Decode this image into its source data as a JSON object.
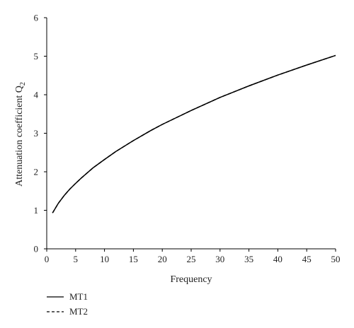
{
  "chart_data": {
    "type": "line",
    "xlabel": "Frequency",
    "ylabel_main": "Attenuation coefficient Q",
    "ylabel_sub": "2",
    "xlim": [
      0,
      50
    ],
    "ylim": [
      0,
      6
    ],
    "x_ticks": [
      "0",
      "5",
      "10",
      "15",
      "20",
      "25",
      "30",
      "35",
      "40",
      "45",
      "50"
    ],
    "y_ticks": [
      "0",
      "1",
      "2",
      "3",
      "4",
      "5",
      "6"
    ],
    "grid": false,
    "legend_position": "bottom-left",
    "series": [
      {
        "name": "MT1",
        "style": "solid",
        "color": "#000000",
        "x": [
          1,
          2,
          3,
          4,
          5,
          6,
          8,
          10,
          12,
          15,
          18,
          20,
          25,
          30,
          35,
          40,
          45,
          50
        ],
        "y": [
          0.93,
          1.18,
          1.38,
          1.55,
          1.7,
          1.84,
          2.1,
          2.32,
          2.53,
          2.81,
          3.07,
          3.23,
          3.59,
          3.93,
          4.23,
          4.51,
          4.77,
          5.02
        ]
      },
      {
        "name": "MT2",
        "style": "dashed",
        "color": "#000000",
        "x": [
          1,
          2,
          3,
          4,
          5,
          6,
          8,
          10,
          12,
          15,
          18,
          20,
          25,
          30,
          35,
          40,
          45,
          50
        ],
        "y": [
          0.93,
          1.18,
          1.38,
          1.55,
          1.7,
          1.84,
          2.1,
          2.32,
          2.53,
          2.81,
          3.07,
          3.23,
          3.59,
          3.93,
          4.23,
          4.51,
          4.77,
          5.02
        ]
      }
    ]
  }
}
